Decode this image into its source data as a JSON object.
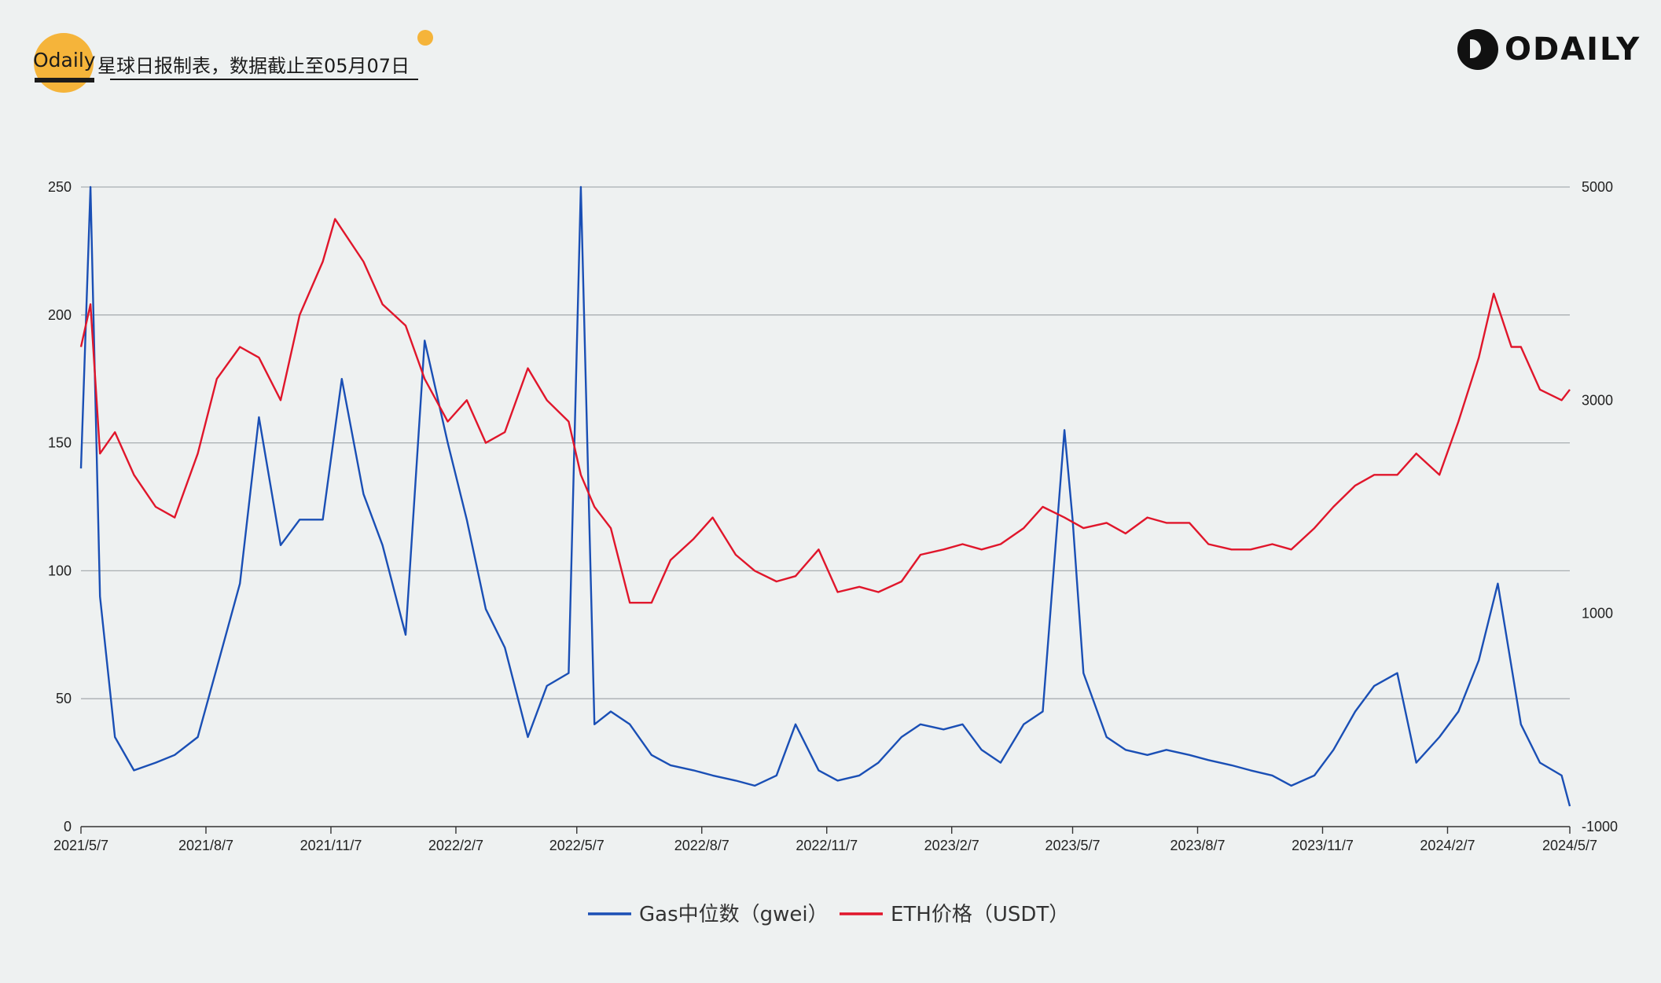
{
  "header": {
    "brand": "Odaily",
    "subtitle": "星球日报制表，数据截止至05月07日",
    "logo_text": "ODAILY"
  },
  "colors": {
    "gas": "#1a4fb5",
    "eth": "#e0162b",
    "grid": "#a9aeb2",
    "accent": "#f5b43a"
  },
  "chart_data": {
    "type": "line",
    "x_labels": [
      "2021/5/7",
      "2021/8/7",
      "2021/11/7",
      "2022/2/7",
      "2022/5/7",
      "2022/8/7",
      "2022/11/7",
      "2023/2/7",
      "2023/5/7",
      "2023/8/7",
      "2023/11/7",
      "2024/2/7",
      "2024/5/7"
    ],
    "y_left": {
      "ticks": [
        0,
        50,
        100,
        150,
        200,
        250
      ],
      "lim": [
        0,
        250
      ]
    },
    "y_right": {
      "ticks": [
        -1000,
        1000,
        3000,
        5000
      ],
      "lim": [
        -1000,
        5000
      ]
    },
    "grid": true,
    "legend_position": "bottom-center",
    "series": [
      {
        "name": "Gas中位数（gwei）",
        "axis": "left",
        "x": [
          "2021/5/7",
          "2021/5/14",
          "2021/5/21",
          "2021/6/1",
          "2021/6/15",
          "2021/7/1",
          "2021/7/15",
          "2021/8/1",
          "2021/8/15",
          "2021/9/1",
          "2021/9/15",
          "2021/10/1",
          "2021/10/15",
          "2021/11/1",
          "2021/11/15",
          "2021/12/1",
          "2021/12/15",
          "2022/1/1",
          "2022/1/15",
          "2022/2/1",
          "2022/2/15",
          "2022/3/1",
          "2022/3/15",
          "2022/4/1",
          "2022/4/15",
          "2022/5/1",
          "2022/5/10",
          "2022/5/20",
          "2022/6/1",
          "2022/6/15",
          "2022/7/1",
          "2022/7/15",
          "2022/8/1",
          "2022/8/15",
          "2022/9/1",
          "2022/9/15",
          "2022/10/1",
          "2022/10/15",
          "2022/11/1",
          "2022/11/15",
          "2022/12/1",
          "2022/12/15",
          "2023/1/1",
          "2023/1/15",
          "2023/2/1",
          "2023/2/15",
          "2023/3/1",
          "2023/3/15",
          "2023/4/1",
          "2023/4/15",
          "2023/5/1",
          "2023/5/7",
          "2023/5/15",
          "2023/6/1",
          "2023/6/15",
          "2023/7/1",
          "2023/7/15",
          "2023/8/1",
          "2023/8/15",
          "2023/9/1",
          "2023/9/15",
          "2023/10/1",
          "2023/10/15",
          "2023/11/1",
          "2023/11/15",
          "2023/12/1",
          "2023/12/15",
          "2024/1/1",
          "2024/1/15",
          "2024/2/1",
          "2024/2/15",
          "2024/3/1",
          "2024/3/15",
          "2024/4/1",
          "2024/4/15",
          "2024/5/1",
          "2024/5/7"
        ],
        "values": [
          140,
          250,
          90,
          35,
          22,
          25,
          28,
          35,
          62,
          95,
          160,
          110,
          120,
          120,
          175,
          130,
          110,
          75,
          190,
          150,
          120,
          85,
          70,
          35,
          55,
          60,
          250,
          40,
          45,
          40,
          28,
          24,
          22,
          20,
          18,
          16,
          20,
          40,
          22,
          18,
          20,
          25,
          35,
          40,
          38,
          40,
          30,
          25,
          40,
          45,
          155,
          120,
          60,
          35,
          30,
          28,
          30,
          28,
          26,
          24,
          22,
          20,
          16,
          20,
          30,
          45,
          55,
          60,
          25,
          35,
          45,
          65,
          95,
          40,
          25,
          20,
          8
        ]
      },
      {
        "name": "ETH价格（USDT）",
        "axis": "right",
        "x": [
          "2021/5/7",
          "2021/5/14",
          "2021/5/21",
          "2021/6/1",
          "2021/6/15",
          "2021/7/1",
          "2021/7/15",
          "2021/8/1",
          "2021/8/15",
          "2021/9/1",
          "2021/9/15",
          "2021/10/1",
          "2021/10/15",
          "2021/11/1",
          "2021/11/10",
          "2021/12/1",
          "2021/12/15",
          "2022/1/1",
          "2022/1/15",
          "2022/2/1",
          "2022/2/15",
          "2022/3/1",
          "2022/3/15",
          "2022/4/1",
          "2022/4/15",
          "2022/5/1",
          "2022/5/10",
          "2022/5/20",
          "2022/6/1",
          "2022/6/15",
          "2022/7/1",
          "2022/7/15",
          "2022/8/1",
          "2022/8/15",
          "2022/9/1",
          "2022/9/15",
          "2022/10/1",
          "2022/10/15",
          "2022/11/1",
          "2022/11/15",
          "2022/12/1",
          "2022/12/15",
          "2023/1/1",
          "2023/1/15",
          "2023/2/1",
          "2023/2/15",
          "2023/3/1",
          "2023/3/15",
          "2023/4/1",
          "2023/4/15",
          "2023/5/1",
          "2023/5/15",
          "2023/6/1",
          "2023/6/15",
          "2023/7/1",
          "2023/7/15",
          "2023/8/1",
          "2023/8/15",
          "2023/9/1",
          "2023/9/15",
          "2023/10/1",
          "2023/10/15",
          "2023/11/1",
          "2023/11/15",
          "2023/12/1",
          "2023/12/15",
          "2024/1/1",
          "2024/1/15",
          "2024/2/1",
          "2024/2/15",
          "2024/3/1",
          "2024/3/12",
          "2024/3/25",
          "2024/4/1",
          "2024/4/15",
          "2024/5/1",
          "2024/5/7"
        ],
        "values": [
          3500,
          3900,
          2500,
          2700,
          2300,
          2000,
          1900,
          2500,
          3200,
          3500,
          3400,
          3000,
          3800,
          4300,
          4700,
          4300,
          3900,
          3700,
          3200,
          2800,
          3000,
          2600,
          2700,
          3300,
          3000,
          2800,
          2300,
          2000,
          1800,
          1100,
          1100,
          1500,
          1700,
          1900,
          1550,
          1400,
          1300,
          1350,
          1600,
          1200,
          1250,
          1200,
          1300,
          1550,
          1600,
          1650,
          1600,
          1650,
          1800,
          2000,
          1900,
          1800,
          1850,
          1750,
          1900,
          1850,
          1850,
          1650,
          1600,
          1600,
          1650,
          1600,
          1800,
          2000,
          2200,
          2300,
          2300,
          2500,
          2300,
          2800,
          3400,
          4000,
          3500,
          3500,
          3100,
          3000,
          3100
        ]
      }
    ]
  }
}
